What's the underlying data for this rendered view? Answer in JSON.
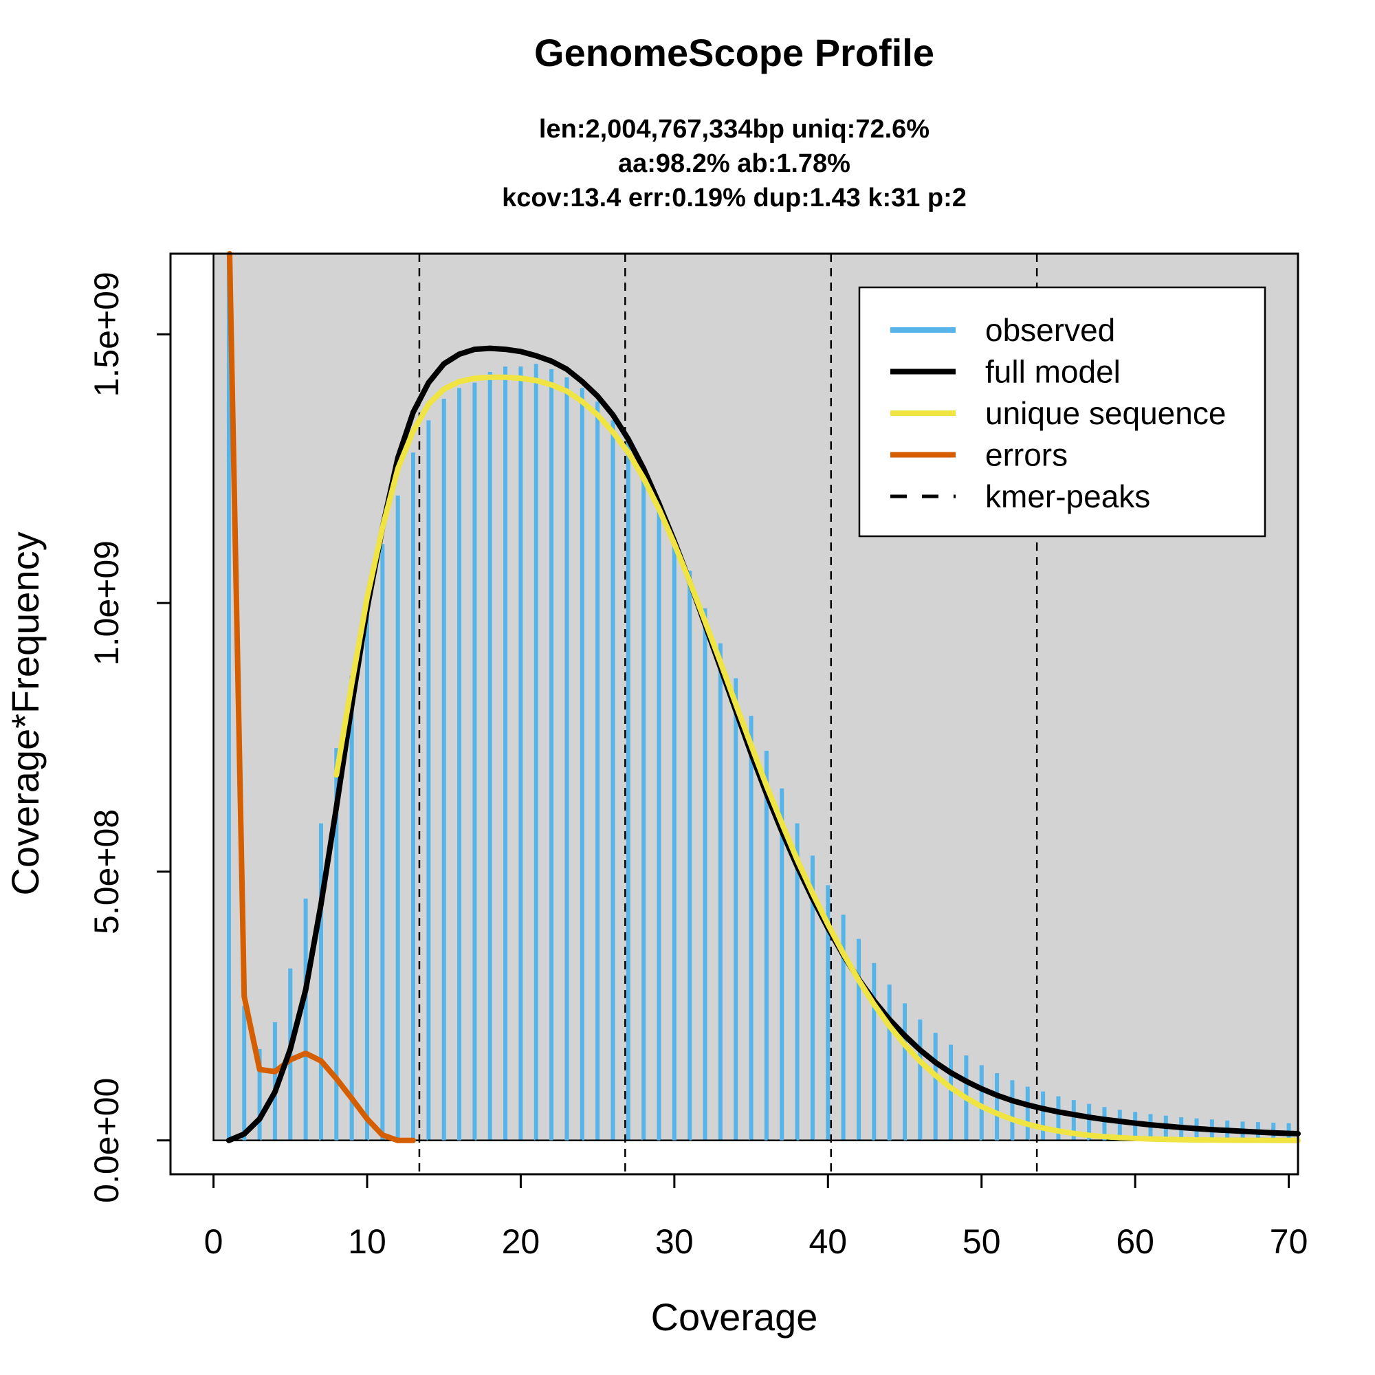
{
  "chart_data": {
    "type": "bar",
    "title": "GenomeScope Profile",
    "subtitle_lines": [
      "len:2,004,767,334bp uniq:72.6%",
      "aa:98.2% ab:1.78%",
      "kcov:13.4 err:0.19%  dup:1.43  k:31 p:2"
    ],
    "xlabel": "Coverage",
    "ylabel": "Coverage*Frequency",
    "xlim": [
      -2.8,
      70.6
    ],
    "ylim": [
      -63000000.0,
      1650000000.0
    ],
    "x_ticks": [
      0,
      10,
      20,
      30,
      40,
      50,
      60,
      70
    ],
    "x_tick_labels": [
      "0",
      "10",
      "20",
      "30",
      "40",
      "50",
      "60",
      "70"
    ],
    "y_ticks": [
      0,
      500000000,
      1000000000,
      1500000000
    ],
    "y_tick_labels": [
      "0.0e+00",
      "5.0e+08",
      "1.0e+09",
      "1.5e+09"
    ],
    "background": "#d3d3d3",
    "grid": false,
    "legend_position": "top-right",
    "legend": [
      {
        "label": "observed",
        "color": "#56b4e9",
        "style": "solid"
      },
      {
        "label": "full model",
        "color": "#000000",
        "style": "solid"
      },
      {
        "label": "unique sequence",
        "color": "#f0e442",
        "style": "solid"
      },
      {
        "label": "errors",
        "color": "#d55e00",
        "style": "solid"
      },
      {
        "label": "kmer-peaks",
        "color": "#000000",
        "style": "dashed"
      }
    ],
    "kmer_peaks": [
      13.4,
      26.8,
      40.2,
      53.6
    ],
    "observed": {
      "name": "observed",
      "color": "#56b4e9",
      "x": [
        1,
        2,
        3,
        4,
        5,
        6,
        7,
        8,
        9,
        10,
        11,
        12,
        13,
        14,
        15,
        16,
        17,
        18,
        19,
        20,
        21,
        22,
        23,
        24,
        25,
        26,
        27,
        28,
        29,
        30,
        31,
        32,
        33,
        34,
        35,
        36,
        37,
        38,
        39,
        40,
        41,
        42,
        43,
        44,
        45,
        46,
        47,
        48,
        49,
        50,
        51,
        52,
        53,
        54,
        55,
        56,
        57,
        58,
        59,
        60,
        61,
        62,
        63,
        64,
        65,
        66,
        67,
        68,
        69,
        70
      ],
      "values": [
        1700000000,
        250000000,
        170000000,
        220000000,
        320000000,
        450000000,
        590000000,
        730000000,
        865000000,
        990000000,
        1110000000,
        1200000000,
        1280000000,
        1340000000,
        1380000000,
        1400000000,
        1410000000,
        1430000000,
        1440000000,
        1440000000,
        1445000000,
        1435000000,
        1420000000,
        1400000000,
        1375000000,
        1340000000,
        1300000000,
        1250000000,
        1190000000,
        1120000000,
        1060000000,
        990000000,
        925000000,
        860000000,
        790000000,
        725000000,
        655000000,
        590000000,
        530000000,
        475000000,
        420000000,
        375000000,
        330000000,
        290000000,
        255000000,
        225000000,
        200000000,
        178000000,
        158000000,
        140000000,
        125000000,
        112000000,
        100000000,
        91000000,
        82000000,
        75000000,
        68000000,
        62000000,
        57000000,
        53000000,
        49000000,
        46000000,
        43000000,
        41000000,
        39000000,
        37000000,
        35000000,
        34000000,
        33000000,
        32000000
      ]
    },
    "series": [
      {
        "name": "full model",
        "color": "#000000",
        "x": [
          1,
          2,
          3,
          4,
          5,
          6,
          7,
          8,
          9,
          10,
          11,
          12,
          13,
          14,
          15,
          16,
          17,
          18,
          19,
          20,
          21,
          22,
          23,
          24,
          25,
          26,
          27,
          28,
          29,
          30,
          31,
          32,
          33,
          34,
          35,
          36,
          37,
          38,
          39,
          40,
          41,
          42,
          43,
          44,
          45,
          46,
          47,
          48,
          49,
          50,
          51,
          52,
          53,
          54,
          55,
          56,
          57,
          58,
          59,
          60,
          61,
          62,
          63,
          64,
          65,
          66,
          67,
          68,
          69,
          70,
          70.6
        ],
        "values": [
          0,
          12000000,
          40000000,
          90000000,
          170000000,
          280000000,
          440000000,
          620000000,
          810000000,
          990000000,
          1140000000,
          1270000000,
          1355000000,
          1410000000,
          1445000000,
          1463000000,
          1472000000,
          1474000000,
          1472000000,
          1468000000,
          1460000000,
          1450000000,
          1435000000,
          1412000000,
          1385000000,
          1350000000,
          1305000000,
          1250000000,
          1185000000,
          1115000000,
          1040000000,
          960000000,
          880000000,
          800000000,
          720000000,
          645000000,
          575000000,
          510000000,
          450000000,
          395000000,
          345000000,
          300000000,
          260000000,
          225000000,
          195000000,
          168000000,
          145000000,
          126000000,
          110000000,
          96000000,
          84000000,
          74000000,
          66000000,
          59000000,
          53000000,
          48000000,
          43000000,
          39000000,
          35500000,
          32000000,
          29000000,
          26500000,
          24000000,
          22000000,
          20000000,
          18500000,
          17000000,
          15500000,
          14000000,
          13000000,
          12500000
        ]
      },
      {
        "name": "unique sequence",
        "color": "#f0e442",
        "x": [
          8,
          9,
          10,
          11,
          12,
          13,
          14,
          15,
          16,
          17,
          18,
          19,
          20,
          21,
          22,
          23,
          24,
          25,
          26,
          27,
          28,
          29,
          30,
          31,
          32,
          33,
          34,
          35,
          36,
          37,
          38,
          39,
          40,
          41,
          42,
          43,
          44,
          45,
          46,
          47,
          48,
          49,
          50,
          51,
          52,
          53,
          54,
          55,
          56,
          57,
          58,
          59,
          60,
          61,
          62,
          63,
          64,
          65,
          66,
          67,
          68,
          69,
          70,
          70.6
        ],
        "values": [
          680000000,
          850000000,
          1010000000,
          1140000000,
          1250000000,
          1320000000,
          1370000000,
          1398000000,
          1412000000,
          1418000000,
          1420000000,
          1420000000,
          1418000000,
          1414000000,
          1406000000,
          1394000000,
          1375000000,
          1350000000,
          1318000000,
          1280000000,
          1232000000,
          1175000000,
          1110000000,
          1040000000,
          966000000,
          890000000,
          812000000,
          735000000,
          660000000,
          590000000,
          522000000,
          460000000,
          402000000,
          348000000,
          298000000,
          253000000,
          213000000,
          178000000,
          147000000,
          121000000,
          98000000,
          79000000,
          63000000,
          50000000,
          39000000,
          30000000,
          23000000,
          17500000,
          13000000,
          9500000,
          7000000,
          5000000,
          3600000,
          2500000,
          1800000,
          1200000,
          800000,
          550000,
          380000,
          260000,
          180000,
          120000,
          80000,
          60000
        ]
      },
      {
        "name": "errors",
        "color": "#d55e00",
        "x": [
          1.05,
          2,
          3,
          4,
          5,
          6,
          7,
          8,
          9,
          10,
          11,
          12,
          13
        ],
        "values": [
          1650000000,
          268000000,
          132000000,
          128000000,
          150000000,
          162000000,
          148000000,
          115000000,
          78000000,
          40000000,
          10000000,
          0,
          0
        ]
      }
    ]
  }
}
